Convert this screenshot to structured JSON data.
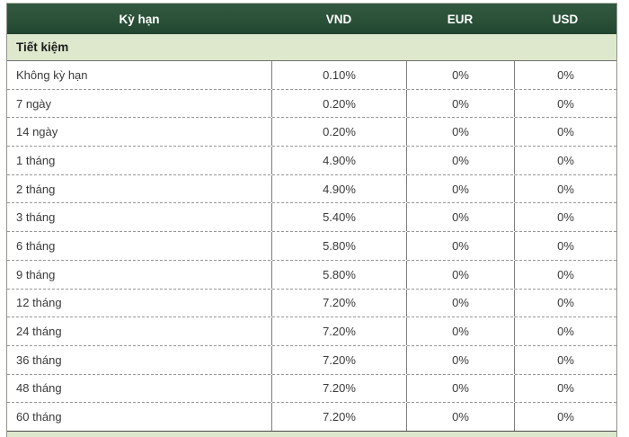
{
  "table": {
    "columns": [
      "Kỳ hạn",
      "VND",
      "EUR",
      "USD"
    ],
    "section_label": "Tiết kiệm",
    "rows": [
      {
        "term": "Không kỳ hạn",
        "vnd": "0.10%",
        "eur": "0%",
        "usd": "0%"
      },
      {
        "term": "7 ngày",
        "vnd": "0.20%",
        "eur": "0%",
        "usd": "0%"
      },
      {
        "term": "14 ngày",
        "vnd": "0.20%",
        "eur": "0%",
        "usd": "0%"
      },
      {
        "term": "1 tháng",
        "vnd": "4.90%",
        "eur": "0%",
        "usd": "0%"
      },
      {
        "term": "2 tháng",
        "vnd": "4.90%",
        "eur": "0%",
        "usd": "0%"
      },
      {
        "term": "3 tháng",
        "vnd": "5.40%",
        "eur": "0%",
        "usd": "0%"
      },
      {
        "term": "6 tháng",
        "vnd": "5.80%",
        "eur": "0%",
        "usd": "0%"
      },
      {
        "term": "9 tháng",
        "vnd": "5.80%",
        "eur": "0%",
        "usd": "0%"
      },
      {
        "term": "12 tháng",
        "vnd": "7.20%",
        "eur": "0%",
        "usd": "0%"
      },
      {
        "term": "24 tháng",
        "vnd": "7.20%",
        "eur": "0%",
        "usd": "0%"
      },
      {
        "term": "36 tháng",
        "vnd": "7.20%",
        "eur": "0%",
        "usd": "0%"
      },
      {
        "term": "48 tháng",
        "vnd": "7.20%",
        "eur": "0%",
        "usd": "0%"
      },
      {
        "term": "60 tháng",
        "vnd": "7.20%",
        "eur": "0%",
        "usd": "0%"
      }
    ],
    "colors": {
      "header_background": "#2a5138",
      "section_background": "#dde8cc",
      "header_text": "#ffffff",
      "body_text": "#3a3a3a"
    }
  }
}
